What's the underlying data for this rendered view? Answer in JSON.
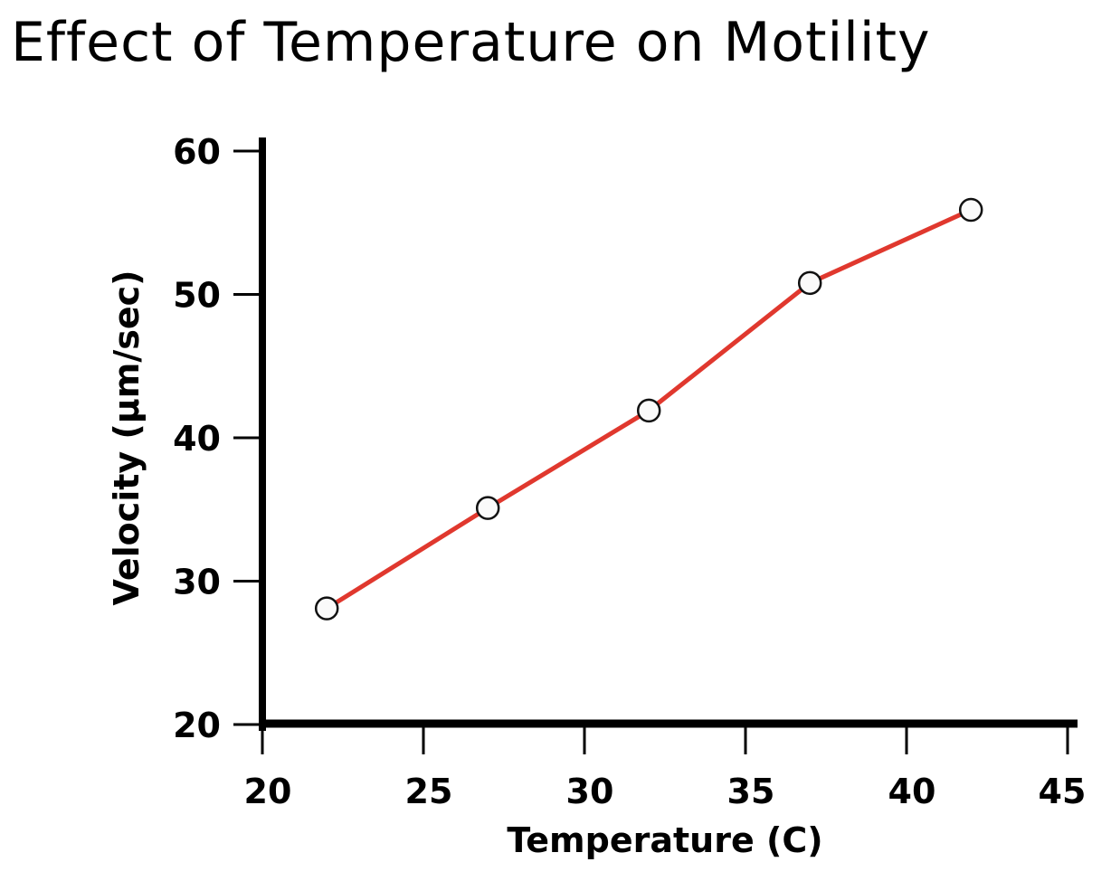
{
  "chart_data": {
    "type": "line",
    "title": "Effect of Temperature on Motility",
    "xlabel": "Temperature (C)",
    "ylabel": "Velocity (µm/sec)",
    "xlim": [
      20,
      45
    ],
    "ylim": [
      20,
      60
    ],
    "xticks": [
      "20",
      "25",
      "30",
      "35",
      "40",
      "45"
    ],
    "yticks": [
      "20",
      "30",
      "40",
      "50",
      "60"
    ],
    "grid": false,
    "x": [
      22,
      27,
      32,
      37,
      42
    ],
    "series": [
      {
        "values": [
          28.1,
          35.1,
          41.9,
          50.8,
          55.9
        ],
        "color": "#e0382e",
        "marker": "open-circle"
      }
    ]
  }
}
